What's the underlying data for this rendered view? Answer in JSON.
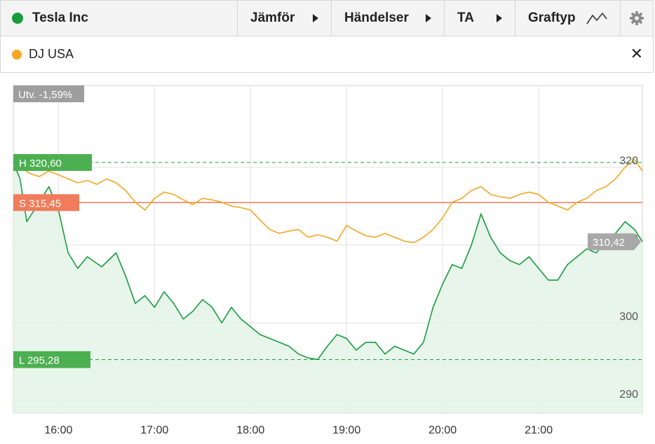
{
  "toolbar": {
    "instrument": "Tesla Inc",
    "instrument_color": "#1a9c3e",
    "compare_label": "Jämför",
    "events_label": "Händelser",
    "ta_label": "TA",
    "charttype_label": "Graftyp",
    "settings_icon": "gear-icon",
    "charttype_icon": "line-chart-icon"
  },
  "legend": {
    "label": "DJ USA",
    "color": "#f5a623",
    "close_icon": "close-icon"
  },
  "chart_data": {
    "type": "line",
    "change_label": "Utv. -1,59%",
    "high_label": "H 320,60",
    "low_label": "L 295,28",
    "start_label": "S 315,45",
    "last_label": "310,42",
    "high": 320.6,
    "low": 295.28,
    "start": 315.45,
    "last": 310.42,
    "ylim": [
      288.4,
      330.5
    ],
    "yticks": [
      290,
      300,
      310,
      320
    ],
    "ytick_labels": [
      "290",
      "300",
      "310",
      "320"
    ],
    "xlim": [
      15.53,
      22.08
    ],
    "xticks": [
      16,
      17,
      18,
      19,
      20,
      21
    ],
    "xtick_labels": [
      "16:00",
      "17:00",
      "18:00",
      "19:00",
      "20:00",
      "21:00"
    ],
    "grid": true,
    "series": [
      {
        "name": "Tesla Inc",
        "color": "#1a9c3e",
        "x": [
          15.53,
          15.6,
          15.67,
          15.8,
          15.9,
          16.0,
          16.1,
          16.2,
          16.3,
          16.45,
          16.6,
          16.7,
          16.8,
          16.9,
          17.0,
          17.1,
          17.2,
          17.3,
          17.4,
          17.5,
          17.6,
          17.7,
          17.8,
          17.9,
          18.0,
          18.1,
          18.2,
          18.3,
          18.4,
          18.5,
          18.6,
          18.7,
          18.8,
          18.9,
          19.0,
          19.1,
          19.2,
          19.3,
          19.4,
          19.5,
          19.6,
          19.7,
          19.8,
          19.9,
          20.0,
          20.1,
          20.2,
          20.3,
          20.4,
          20.5,
          20.6,
          20.7,
          20.8,
          20.9,
          21.0,
          21.1,
          21.2,
          21.3,
          21.4,
          21.5,
          21.6,
          21.7,
          21.8,
          21.9,
          22.0,
          22.08
        ],
        "y": [
          320.6,
          318.5,
          313.0,
          315.5,
          317.5,
          314.5,
          309.0,
          307.0,
          308.5,
          307.2,
          309.0,
          306.0,
          302.5,
          303.5,
          302.0,
          304.0,
          302.5,
          300.5,
          301.5,
          303.0,
          302.0,
          300.0,
          302.0,
          300.5,
          299.5,
          298.5,
          298.0,
          297.5,
          297.0,
          296.0,
          295.5,
          295.3,
          297.0,
          298.5,
          298.0,
          296.5,
          297.5,
          297.5,
          296.0,
          297.0,
          296.5,
          296.0,
          297.5,
          302.0,
          305.0,
          307.5,
          307.0,
          310.0,
          314.0,
          311.0,
          309.0,
          308.0,
          307.5,
          308.5,
          307.0,
          305.5,
          305.5,
          307.5,
          308.5,
          309.5,
          309.0,
          310.5,
          311.5,
          313.0,
          312.0,
          310.42
        ]
      },
      {
        "name": "DJ USA",
        "color": "#f5a623",
        "x": [
          15.53,
          15.6,
          15.7,
          15.8,
          15.9,
          16.0,
          16.1,
          16.2,
          16.3,
          16.4,
          16.5,
          16.6,
          16.7,
          16.8,
          16.9,
          17.0,
          17.1,
          17.2,
          17.3,
          17.4,
          17.5,
          17.6,
          17.7,
          17.8,
          17.9,
          18.0,
          18.1,
          18.2,
          18.3,
          18.4,
          18.5,
          18.6,
          18.7,
          18.8,
          18.9,
          19.0,
          19.1,
          19.2,
          19.3,
          19.4,
          19.5,
          19.6,
          19.7,
          19.8,
          19.9,
          20.0,
          20.1,
          20.2,
          20.3,
          20.4,
          20.5,
          20.6,
          20.7,
          20.8,
          20.9,
          21.0,
          21.1,
          21.2,
          21.3,
          21.4,
          21.5,
          21.6,
          21.7,
          21.8,
          21.9,
          22.0,
          22.08
        ],
        "y": [
          319.5,
          320.0,
          319.2,
          318.8,
          319.5,
          319.0,
          318.5,
          318.0,
          318.3,
          317.8,
          318.5,
          318.0,
          317.0,
          315.5,
          314.5,
          316.0,
          316.8,
          316.5,
          315.8,
          315.2,
          316.0,
          315.8,
          315.5,
          315.0,
          314.8,
          314.5,
          313.2,
          312.0,
          311.5,
          311.8,
          312.0,
          311.0,
          311.3,
          311.0,
          310.5,
          312.5,
          311.8,
          311.2,
          311.0,
          311.5,
          311.0,
          310.5,
          310.3,
          311.0,
          312.0,
          313.5,
          315.5,
          316.0,
          317.0,
          317.5,
          316.5,
          316.2,
          316.0,
          316.5,
          316.8,
          316.5,
          315.5,
          315.0,
          314.5,
          315.5,
          316.0,
          317.0,
          317.5,
          318.5,
          320.0,
          321.0,
          319.5
        ]
      }
    ]
  }
}
